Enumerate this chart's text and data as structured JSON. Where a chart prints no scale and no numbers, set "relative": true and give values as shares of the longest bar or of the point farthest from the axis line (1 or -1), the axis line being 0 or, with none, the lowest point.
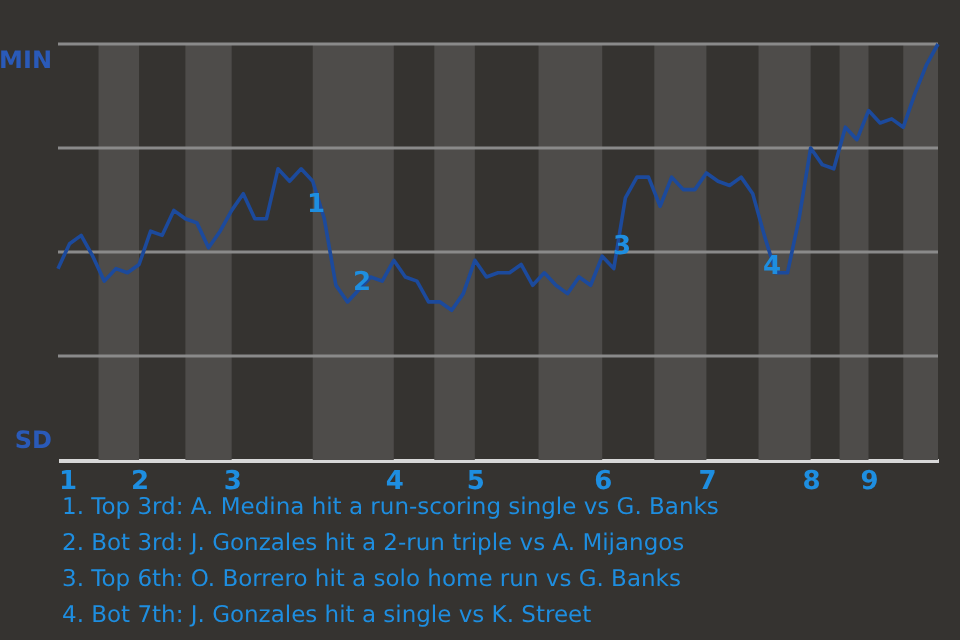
{
  "chart_data": {
    "type": "line",
    "color": "#1c4a9c",
    "line_style": "solid",
    "marker": "none",
    "grid": "y",
    "legend": false,
    "relative": true,
    "categories": [
      "1",
      null,
      null,
      null,
      null,
      null,
      null,
      "2",
      null,
      null,
      null,
      null,
      null,
      null,
      null,
      "3",
      null,
      null,
      null,
      null,
      null,
      null,
      null,
      null,
      null,
      null,
      null,
      null,
      null,
      "4",
      null,
      null,
      null,
      null,
      null,
      null,
      "5",
      null,
      null,
      null,
      null,
      null,
      null,
      null,
      null,
      null,
      null,
      "6",
      null,
      null,
      null,
      null,
      null,
      null,
      null,
      null,
      "7",
      null,
      null,
      null,
      null,
      null,
      null,
      null,
      null,
      "8",
      null,
      null,
      null,
      null,
      "9",
      null,
      null,
      null,
      null,
      null,
      null
    ],
    "values": [
      0.46,
      0.52,
      0.54,
      0.49,
      0.43,
      0.46,
      0.45,
      0.47,
      0.55,
      0.54,
      0.6,
      0.58,
      0.57,
      0.51,
      0.55,
      0.6,
      0.64,
      0.58,
      0.58,
      0.7,
      0.67,
      0.7,
      0.67,
      0.58,
      0.42,
      0.38,
      0.41,
      0.44,
      0.43,
      0.48,
      0.44,
      0.43,
      0.38,
      0.38,
      0.36,
      0.4,
      0.48,
      0.44,
      0.45,
      0.45,
      0.47,
      0.42,
      0.45,
      0.42,
      0.4,
      0.44,
      0.42,
      0.49,
      0.46,
      0.63,
      0.68,
      0.68,
      0.61,
      0.68,
      0.65,
      0.65,
      0.69,
      0.67,
      0.66,
      0.68,
      0.64,
      0.54,
      0.45,
      0.45,
      0.58,
      0.75,
      0.71,
      0.7,
      0.8,
      0.77,
      0.84,
      0.81,
      0.82,
      0.8,
      0.88,
      0.95,
      1.0
    ],
    "annotations": [
      "1",
      "2",
      "3",
      "4",
      "MIN",
      "SD",
      "1. Top 3rd: A. Medina hit a run-scoring single vs G. Banks",
      "2. Bot 3rd: J. Gonzales hit a 2-run triple vs A. Mijangos",
      "3. Top 6th: O. Borrero hit a solo home run vs G. Banks",
      "4. Bot 7th: J. Gonzales hit a single vs K. Street"
    ]
  }
}
